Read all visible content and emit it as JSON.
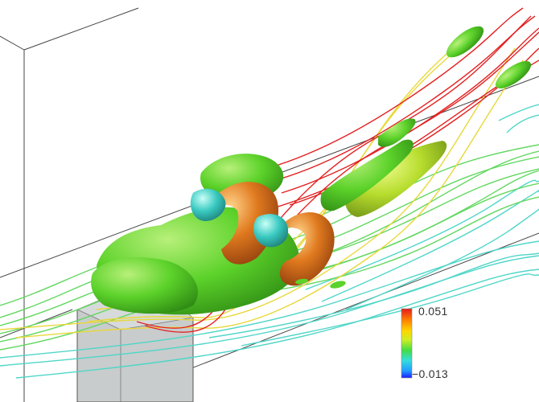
{
  "colorbar": {
    "max_label": "0.051",
    "min_label": "−0.013",
    "gradient_colors": [
      "#e41a1c",
      "#ff7f00",
      "#ffd700",
      "#ccee22",
      "#44dd44",
      "#33dddd",
      "#2299ff",
      "#1a1aff"
    ]
  },
  "scene_colors": {
    "background": "#ffffff",
    "wireframe": "#444444",
    "obstacle_fill": "#c8cccc",
    "vortex_green": "#5cd22a",
    "vortex_orange": "#e07a1f",
    "vortex_cyan": "#38c9c0",
    "streamline_red": "#e32222",
    "streamline_yellow": "#e8d83a",
    "streamline_green": "#62d860",
    "streamline_cyan": "#4fd6c8"
  }
}
